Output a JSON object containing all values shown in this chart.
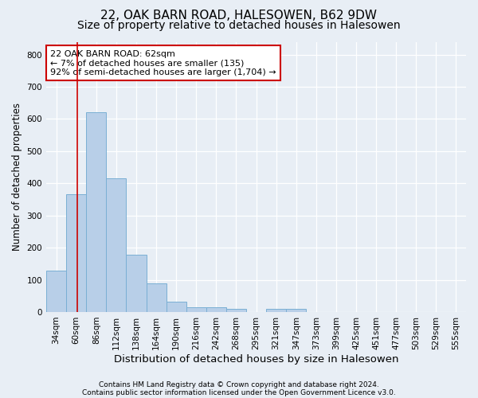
{
  "title1": "22, OAK BARN ROAD, HALESOWEN, B62 9DW",
  "title2": "Size of property relative to detached houses in Halesowen",
  "xlabel": "Distribution of detached houses by size in Halesowen",
  "ylabel": "Number of detached properties",
  "bar_color": "#b8cfe8",
  "bar_edge_color": "#7aafd4",
  "categories": [
    "34sqm",
    "60sqm",
    "86sqm",
    "112sqm",
    "138sqm",
    "164sqm",
    "190sqm",
    "216sqm",
    "242sqm",
    "268sqm",
    "295sqm",
    "321sqm",
    "347sqm",
    "373sqm",
    "399sqm",
    "425sqm",
    "451sqm",
    "477sqm",
    "503sqm",
    "529sqm",
    "555sqm"
  ],
  "values": [
    128,
    365,
    622,
    415,
    178,
    88,
    32,
    15,
    15,
    10,
    0,
    10,
    10,
    0,
    0,
    0,
    0,
    0,
    0,
    0,
    0
  ],
  "ylim": [
    0,
    840
  ],
  "yticks": [
    0,
    100,
    200,
    300,
    400,
    500,
    600,
    700,
    800
  ],
  "red_line_x": 1.07,
  "annotation_line1": "22 OAK BARN ROAD: 62sqm",
  "annotation_line2": "← 7% of detached houses are smaller (135)",
  "annotation_line3": "92% of semi-detached houses are larger (1,704) →",
  "annotation_box_color": "#ffffff",
  "annotation_border_color": "#cc0000",
  "footer1": "Contains HM Land Registry data © Crown copyright and database right 2024.",
  "footer2": "Contains public sector information licensed under the Open Government Licence v3.0.",
  "bg_color": "#e8eef5",
  "plot_bg_color": "#e8eef5",
  "grid_color": "#ffffff",
  "title1_fontsize": 11,
  "title2_fontsize": 10,
  "tick_fontsize": 7.5,
  "xlabel_fontsize": 9.5,
  "ylabel_fontsize": 8.5,
  "annotation_fontsize": 8
}
